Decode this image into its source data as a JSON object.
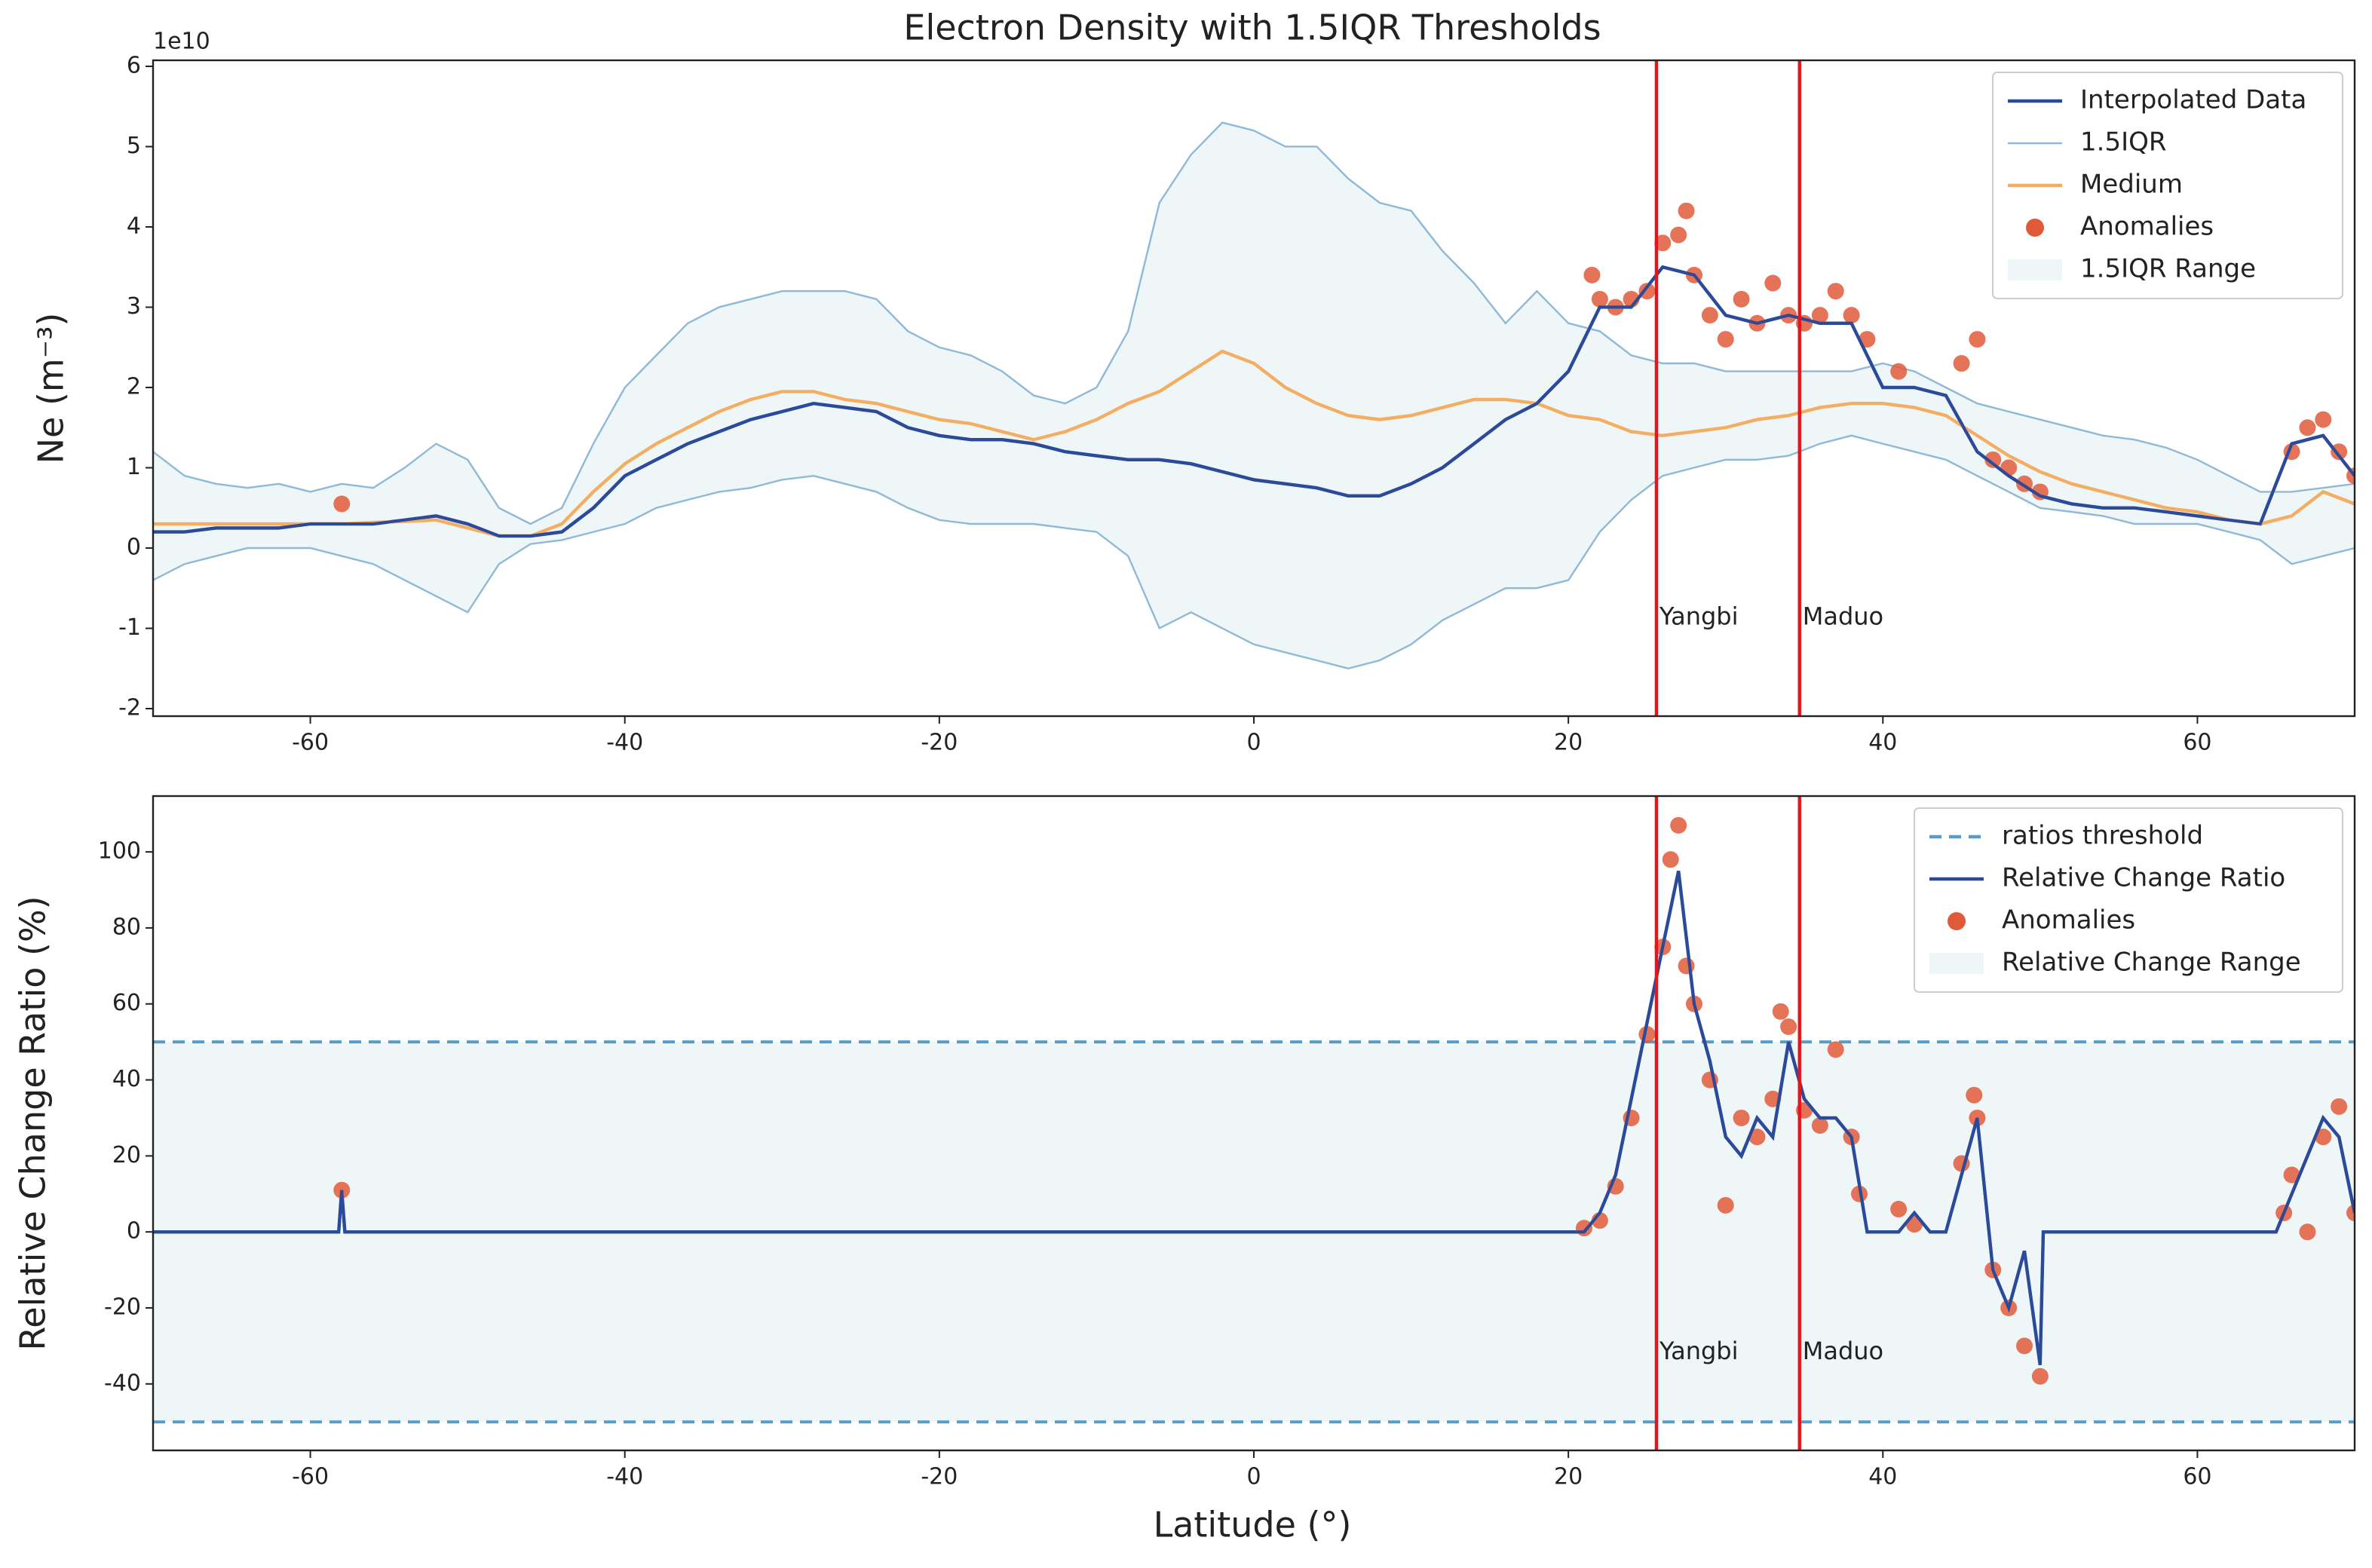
{
  "chart_data": [
    {
      "type": "line",
      "title": "Electron Density with 1.5IQR Thresholds",
      "ylabel": "Ne (m⁻³)",
      "yoffset_label": "1e10",
      "xlim": [
        -70,
        70
      ],
      "xticks": [
        -60,
        -40,
        -20,
        0,
        20,
        40,
        60
      ],
      "ylim": [
        -2.094,
        6.075
      ],
      "yticks": [
        -2,
        -1,
        0,
        1,
        2,
        3,
        4,
        5,
        6
      ],
      "x": [
        -70,
        -68,
        -66,
        -64,
        -62,
        -60,
        -58,
        -56,
        -54,
        -52,
        -50,
        -48,
        -46,
        -44,
        -42,
        -40,
        -38,
        -36,
        -34,
        -32,
        -30,
        -28,
        -26,
        -24,
        -22,
        -20,
        -18,
        -16,
        -14,
        -12,
        -10,
        -8,
        -6,
        -4,
        -2,
        0,
        2,
        4,
        6,
        8,
        10,
        12,
        14,
        16,
        18,
        20,
        22,
        24,
        26,
        28,
        30,
        32,
        34,
        36,
        38,
        40,
        42,
        44,
        46,
        48,
        50,
        52,
        54,
        56,
        58,
        60,
        62,
        64,
        66,
        68,
        70
      ],
      "series": [
        {
          "name": "Interpolated Data",
          "color": "#2c4a9a",
          "values": [
            0.2,
            0.2,
            0.25,
            0.25,
            0.25,
            0.3,
            0.3,
            0.3,
            0.35,
            0.4,
            0.3,
            0.15,
            0.15,
            0.2,
            0.5,
            0.9,
            1.1,
            1.3,
            1.45,
            1.6,
            1.7,
            1.8,
            1.75,
            1.7,
            1.5,
            1.4,
            1.35,
            1.35,
            1.3,
            1.2,
            1.15,
            1.1,
            1.1,
            1.05,
            0.95,
            0.85,
            0.8,
            0.75,
            0.65,
            0.65,
            0.8,
            1.0,
            1.3,
            1.6,
            1.8,
            2.2,
            3.0,
            3.0,
            3.5,
            3.4,
            2.9,
            2.8,
            2.9,
            2.8,
            2.8,
            2.0,
            2.0,
            1.9,
            1.2,
            0.9,
            0.65,
            0.55,
            0.5,
            0.5,
            0.45,
            0.4,
            0.35,
            0.3,
            1.3,
            1.4,
            0.9
          ]
        },
        {
          "name": "1.5IQR",
          "color": "#8fb9d6",
          "upper": [
            1.2,
            0.9,
            0.8,
            0.75,
            0.8,
            0.7,
            0.8,
            0.75,
            1.0,
            1.3,
            1.1,
            0.5,
            0.3,
            0.5,
            1.3,
            2.0,
            2.4,
            2.8,
            3.0,
            3.1,
            3.2,
            3.2,
            3.2,
            3.1,
            2.7,
            2.5,
            2.4,
            2.2,
            1.9,
            1.8,
            2.0,
            2.7,
            4.3,
            4.9,
            5.3,
            5.2,
            5.0,
            5.0,
            4.6,
            4.3,
            4.2,
            3.7,
            3.3,
            2.8,
            3.2,
            2.8,
            2.7,
            2.4,
            2.3,
            2.3,
            2.2,
            2.2,
            2.2,
            2.2,
            2.2,
            2.3,
            2.2,
            2.0,
            1.8,
            1.7,
            1.6,
            1.5,
            1.4,
            1.35,
            1.25,
            1.1,
            0.9,
            0.7,
            0.7,
            0.75,
            0.8
          ],
          "lower": [
            -0.4,
            -0.2,
            -0.1,
            0,
            0,
            0,
            -0.1,
            -0.2,
            -0.4,
            -0.6,
            -0.8,
            -0.2,
            0.05,
            0.1,
            0.2,
            0.3,
            0.5,
            0.6,
            0.7,
            0.75,
            0.85,
            0.9,
            0.8,
            0.7,
            0.5,
            0.35,
            0.3,
            0.3,
            0.3,
            0.25,
            0.2,
            -0.1,
            -1.0,
            -0.8,
            -1.0,
            -1.2,
            -1.3,
            -1.4,
            -1.5,
            -1.4,
            -1.2,
            -0.9,
            -0.7,
            -0.5,
            -0.5,
            -0.4,
            0.2,
            0.6,
            0.9,
            1.0,
            1.1,
            1.1,
            1.15,
            1.3,
            1.4,
            1.3,
            1.2,
            1.1,
            0.9,
            0.7,
            0.5,
            0.45,
            0.4,
            0.3,
            0.3,
            0.3,
            0.2,
            0.1,
            -0.2,
            -0.1,
            0
          ]
        },
        {
          "name": "Medium",
          "color": "#f4ae64",
          "values": [
            0.3,
            0.3,
            0.3,
            0.3,
            0.3,
            0.3,
            0.3,
            0.32,
            0.33,
            0.35,
            0.25,
            0.15,
            0.15,
            0.3,
            0.7,
            1.05,
            1.3,
            1.5,
            1.7,
            1.85,
            1.95,
            1.95,
            1.85,
            1.8,
            1.7,
            1.6,
            1.55,
            1.45,
            1.35,
            1.45,
            1.6,
            1.8,
            1.95,
            2.2,
            2.45,
            2.3,
            2.0,
            1.8,
            1.65,
            1.6,
            1.65,
            1.75,
            1.85,
            1.85,
            1.8,
            1.65,
            1.6,
            1.45,
            1.4,
            1.45,
            1.5,
            1.6,
            1.65,
            1.75,
            1.8,
            1.8,
            1.75,
            1.65,
            1.4,
            1.15,
            0.95,
            0.8,
            0.7,
            0.6,
            0.5,
            0.45,
            0.35,
            0.3,
            0.4,
            0.7,
            0.55
          ]
        }
      ],
      "fill": {
        "name": "1.5IQR Range",
        "color": "#eef6f8"
      },
      "anomalies": {
        "name": "Anomalies",
        "color": "#e05a3a",
        "x": [
          -58,
          21.5,
          22,
          23,
          24,
          25,
          26,
          27,
          27.5,
          28,
          29,
          30,
          31,
          32,
          33,
          34,
          35,
          36,
          37,
          38,
          39,
          41,
          45,
          46,
          47,
          48,
          49,
          50,
          66,
          67,
          68,
          69,
          70
        ],
        "values": [
          0.55,
          3.4,
          3.1,
          3.0,
          3.1,
          3.2,
          3.8,
          3.9,
          4.2,
          3.4,
          2.9,
          2.6,
          3.1,
          2.8,
          3.3,
          2.9,
          2.8,
          2.9,
          3.2,
          2.9,
          2.6,
          2.2,
          2.3,
          2.6,
          1.1,
          1.0,
          0.8,
          0.7,
          1.2,
          1.5,
          1.6,
          1.2,
          0.9
        ]
      },
      "events": [
        {
          "label": "Yangbi",
          "x": 25.6
        },
        {
          "label": "Maduo",
          "x": 34.7
        }
      ],
      "event_color": "#e8141c"
    },
    {
      "type": "line",
      "xlabel": "Latitude (°)",
      "ylabel": "Relative Change Ratio (%)",
      "xlim": [
        -70,
        70
      ],
      "xticks": [
        -60,
        -40,
        -20,
        0,
        20,
        40,
        60
      ],
      "ylim": [
        -57.5,
        114.7
      ],
      "yticks": [
        -40,
        -20,
        0,
        20,
        40,
        60,
        80,
        100
      ],
      "x": [
        -70,
        -58.2,
        -58,
        -57.8,
        21,
        22,
        23,
        24,
        25,
        26,
        27,
        28,
        29,
        30,
        31,
        32,
        33,
        34,
        35,
        36,
        37,
        38,
        39,
        40,
        41,
        42,
        43,
        44,
        45,
        46,
        47,
        48,
        49,
        50,
        50.2,
        65,
        66,
        67,
        68,
        69,
        70
      ],
      "series": [
        {
          "name": "Relative Change Ratio",
          "color": "#2c4a9a",
          "values": [
            0,
            0,
            11,
            0,
            0,
            5,
            15,
            35,
            55,
            75,
            95,
            60,
            45,
            25,
            20,
            30,
            25,
            50,
            35,
            30,
            30,
            25,
            0,
            0,
            0,
            5,
            0,
            0,
            15,
            30,
            -10,
            -20,
            -5,
            -35,
            0,
            0,
            10,
            20,
            30,
            25,
            5
          ]
        }
      ],
      "threshold": {
        "name": "ratios threshold",
        "color": "#5a9bc8",
        "values": [
          50,
          -50
        ]
      },
      "fill": {
        "name": "Relative Change Range",
        "color": "#eef6f8"
      },
      "anomalies": {
        "name": "Anomalies",
        "color": "#e05a3a",
        "x": [
          -58,
          21,
          22,
          23,
          24,
          25,
          26,
          26.5,
          27,
          27.5,
          28,
          29,
          30,
          31,
          32,
          33,
          33.5,
          34,
          35,
          36,
          37,
          38,
          38.5,
          41,
          42,
          45,
          45.8,
          46,
          47,
          48,
          49,
          50,
          65.5,
          66,
          67,
          68,
          69,
          70
        ],
        "values": [
          11,
          1,
          3,
          12,
          30,
          52,
          75,
          98,
          107,
          70,
          60,
          40,
          7,
          30,
          25,
          35,
          58,
          54,
          32,
          28,
          48,
          25,
          10,
          6,
          2,
          18,
          36,
          30,
          -10,
          -20,
          -30,
          -38,
          5,
          15,
          0,
          25,
          33,
          5
        ]
      },
      "events": [
        {
          "label": "Yangbi",
          "x": 25.6
        },
        {
          "label": "Maduo",
          "x": 34.7
        }
      ],
      "event_color": "#e8141c"
    }
  ]
}
